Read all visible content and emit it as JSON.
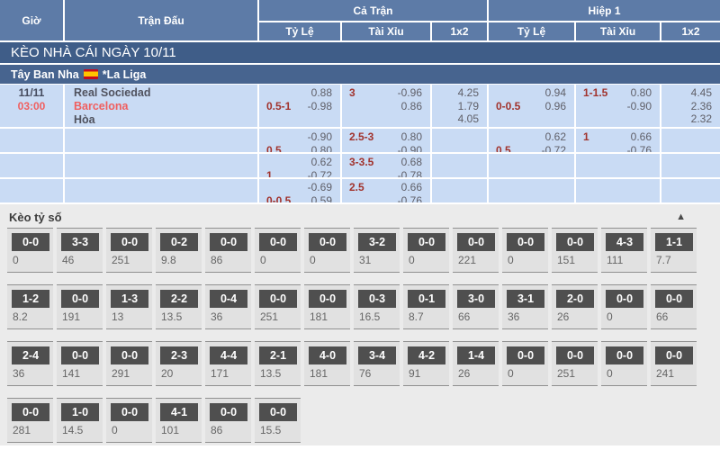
{
  "header": {
    "time": "Giờ",
    "match": "Trận Đấu",
    "full_match": "Cả Trận",
    "first_half": "Hiệp 1",
    "sub_cols": [
      "Tỷ Lệ",
      "Tài Xỉu",
      "1x2"
    ]
  },
  "date_bar": {
    "label": "KÈO NHÀ CÁI NGÀY 10/11"
  },
  "league_bar": {
    "country": "Tây Ban Nha",
    "league": "*La Liga",
    "flag": "spain-flag"
  },
  "match": {
    "date": "11/11",
    "time": "03:00",
    "home": "Real Sociedad",
    "away": "Barcelona",
    "draw_label": "Hòa"
  },
  "odds_rows": [
    {
      "ft_hdp": {
        "l1_left": "",
        "l1_right": "0.88",
        "l2_left": "0.5-1",
        "l2_right": "-0.98"
      },
      "ft_ou": {
        "l1_left": "3",
        "l1_right": "-0.96",
        "l2_left": "",
        "l2_right": "0.86"
      },
      "ft_1x2": [
        "4.25",
        "1.79",
        "4.05"
      ],
      "h1_hdp": {
        "l1_left": "",
        "l1_right": "0.94",
        "l2_left": "0-0.5",
        "l2_right": "0.96"
      },
      "h1_ou": {
        "l1_left": "1-1.5",
        "l1_right": "0.80",
        "l2_left": "",
        "l2_right": "-0.90"
      },
      "h1_1x2": [
        "4.45",
        "2.36",
        "2.32"
      ]
    },
    {
      "ft_hdp": {
        "l1_left": "",
        "l1_right": "-0.90",
        "l2_left": "0.5",
        "l2_right": "0.80"
      },
      "ft_ou": {
        "l1_left": "2.5-3",
        "l1_right": "0.80",
        "l2_left": "",
        "l2_right": "-0.90"
      },
      "ft_1x2": [],
      "h1_hdp": {
        "l1_left": "",
        "l1_right": "0.62",
        "l2_left": "0.5",
        "l2_right": "-0.72"
      },
      "h1_ou": {
        "l1_left": "1",
        "l1_right": "0.66",
        "l2_left": "",
        "l2_right": "-0.76"
      },
      "h1_1x2": []
    },
    {
      "ft_hdp": {
        "l1_left": "",
        "l1_right": "0.62",
        "l2_left": "1",
        "l2_right": "-0.72"
      },
      "ft_ou": {
        "l1_left": "3-3.5",
        "l1_right": "0.68",
        "l2_left": "",
        "l2_right": "-0.78"
      },
      "ft_1x2": [],
      "h1_hdp": null,
      "h1_ou": null,
      "h1_1x2": []
    },
    {
      "ft_hdp": {
        "l1_left": "",
        "l1_right": "-0.69",
        "l2_left": "0-0.5",
        "l2_right": "0.59"
      },
      "ft_ou": {
        "l1_left": "2.5",
        "l1_right": "0.66",
        "l2_left": "",
        "l2_right": "-0.76"
      },
      "ft_1x2": [],
      "h1_hdp": null,
      "h1_ou": null,
      "h1_1x2": []
    }
  ],
  "score_section": {
    "title": "Kèo tỷ số",
    "collapse_icon": "chevron-up",
    "rows": [
      [
        {
          "score": "0-0",
          "odds": "0"
        },
        {
          "score": "3-3",
          "odds": "46"
        },
        {
          "score": "0-0",
          "odds": "251"
        },
        {
          "score": "0-2",
          "odds": "9.8"
        },
        {
          "score": "0-0",
          "odds": "86"
        },
        {
          "score": "0-0",
          "odds": "0"
        },
        {
          "score": "0-0",
          "odds": "0"
        },
        {
          "score": "3-2",
          "odds": "31"
        },
        {
          "score": "0-0",
          "odds": "0"
        },
        {
          "score": "0-0",
          "odds": "221"
        },
        {
          "score": "0-0",
          "odds": "0"
        },
        {
          "score": "0-0",
          "odds": "151"
        },
        {
          "score": "4-3",
          "odds": "111"
        },
        {
          "score": "1-1",
          "odds": "7.7"
        }
      ],
      [
        {
          "score": "1-2",
          "odds": "8.2"
        },
        {
          "score": "0-0",
          "odds": "191"
        },
        {
          "score": "1-3",
          "odds": "13"
        },
        {
          "score": "2-2",
          "odds": "13.5"
        },
        {
          "score": "0-4",
          "odds": "36"
        },
        {
          "score": "0-0",
          "odds": "251"
        },
        {
          "score": "0-0",
          "odds": "181"
        },
        {
          "score": "0-3",
          "odds": "16.5"
        },
        {
          "score": "0-1",
          "odds": "8.7"
        },
        {
          "score": "3-0",
          "odds": "66"
        },
        {
          "score": "3-1",
          "odds": "36"
        },
        {
          "score": "2-0",
          "odds": "26"
        },
        {
          "score": "0-0",
          "odds": "0"
        },
        {
          "score": "0-0",
          "odds": "66"
        }
      ],
      [
        {
          "score": "2-4",
          "odds": "36"
        },
        {
          "score": "0-0",
          "odds": "141"
        },
        {
          "score": "0-0",
          "odds": "291"
        },
        {
          "score": "2-3",
          "odds": "20"
        },
        {
          "score": "4-4",
          "odds": "171"
        },
        {
          "score": "2-1",
          "odds": "13.5"
        },
        {
          "score": "4-0",
          "odds": "181"
        },
        {
          "score": "3-4",
          "odds": "76"
        },
        {
          "score": "4-2",
          "odds": "91"
        },
        {
          "score": "1-4",
          "odds": "26"
        },
        {
          "score": "0-0",
          "odds": "0"
        },
        {
          "score": "0-0",
          "odds": "251"
        },
        {
          "score": "0-0",
          "odds": "0"
        },
        {
          "score": "0-0",
          "odds": "241"
        }
      ],
      [
        {
          "score": "0-0",
          "odds": "281"
        },
        {
          "score": "1-0",
          "odds": "14.5"
        },
        {
          "score": "0-0",
          "odds": "0"
        },
        {
          "score": "4-1",
          "odds": "101"
        },
        {
          "score": "0-0",
          "odds": "86"
        },
        {
          "score": "0-0",
          "odds": "15.5"
        }
      ]
    ]
  },
  "colors": {
    "header_blue": "#5d7ba7",
    "bar_navy": "#3f5d88",
    "league_navy": "#47648f",
    "row_blue": "#c9dbf4",
    "handicap_red": "#a1332d",
    "highlight_red": "#f05f5f",
    "score_box_grey": "#4f4f4f"
  }
}
